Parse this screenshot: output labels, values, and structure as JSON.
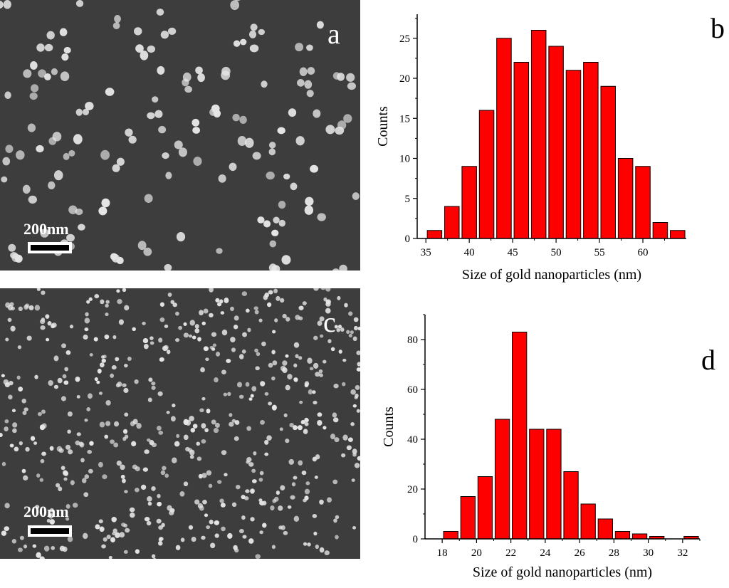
{
  "panels": {
    "a": {
      "label": "a",
      "scale_bar": "200nm"
    },
    "b": {
      "label": "b"
    },
    "c": {
      "label": "c",
      "scale_bar": "200nm"
    },
    "d": {
      "label": "d"
    }
  },
  "colors": {
    "bar_fill": "#ff0000",
    "bar_stroke": "#000000",
    "sem_bg": "#3d3d3d",
    "particle": "#e6e6e6"
  },
  "chart_data": [
    {
      "id": "b",
      "type": "bar",
      "xlabel": "Size of gold nanoparticles (nm)",
      "ylabel": "Counts",
      "bin_centers": [
        36,
        38,
        40,
        42,
        44,
        46,
        48,
        50,
        52,
        54,
        56,
        58,
        60,
        62,
        64
      ],
      "values": [
        1,
        4,
        9,
        16,
        25,
        22,
        26,
        24,
        21,
        22,
        19,
        10,
        9,
        2,
        1
      ],
      "bin_width": 2,
      "xlim": [
        34,
        65
      ],
      "ylim": [
        0,
        28
      ],
      "x_ticks": [
        35,
        40,
        45,
        50,
        55,
        60
      ],
      "y_ticks": [
        0,
        5,
        10,
        15,
        20,
        25
      ]
    },
    {
      "id": "d",
      "type": "bar",
      "xlabel": "Size of gold nanoparticles (nm)",
      "ylabel": "Counts",
      "bin_centers": [
        18.5,
        19.5,
        20.5,
        21.5,
        22.5,
        23.5,
        24.5,
        25.5,
        26.5,
        27.5,
        28.5,
        29.5,
        30.5,
        31.5,
        32.5
      ],
      "values": [
        3,
        17,
        25,
        48,
        83,
        44,
        44,
        27,
        14,
        8,
        3,
        2,
        1,
        0,
        1
      ],
      "bin_width": 1,
      "xlim": [
        17,
        33
      ],
      "ylim": [
        0,
        90
      ],
      "x_ticks": [
        18,
        20,
        22,
        24,
        26,
        28,
        30,
        32
      ],
      "y_ticks": [
        0,
        20,
        40,
        60,
        80
      ]
    }
  ]
}
